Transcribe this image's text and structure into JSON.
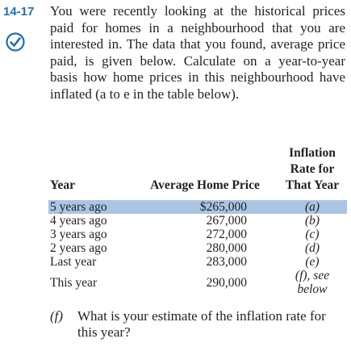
{
  "problem": {
    "number": "14-17",
    "text": "You were recently looking at the historical prices paid for homes in a neighbourhood that you are interested in. The data that you found, average price paid, is given below. Calculate on a year-to-year basis how home prices in this neighbourhood have inflated (a to e in the table below)."
  },
  "table": {
    "headers": [
      "Year",
      "Average Home Price",
      "Inflation Rate for That Year"
    ],
    "rows": [
      [
        "5 years ago",
        "$265,000",
        "(a)"
      ],
      [
        "4 years ago",
        "267,000",
        "(b)"
      ],
      [
        "3 years ago",
        "272,000",
        "(c)"
      ],
      [
        "2 years ago",
        "280,000",
        "(d)"
      ],
      [
        "Last year",
        "283,000",
        "(e)"
      ],
      [
        "This year",
        "290,000",
        "(f), see below"
      ]
    ]
  },
  "part_f": {
    "label": "(f)",
    "text": "What is your estimate of the inflation rate for this year?"
  }
}
